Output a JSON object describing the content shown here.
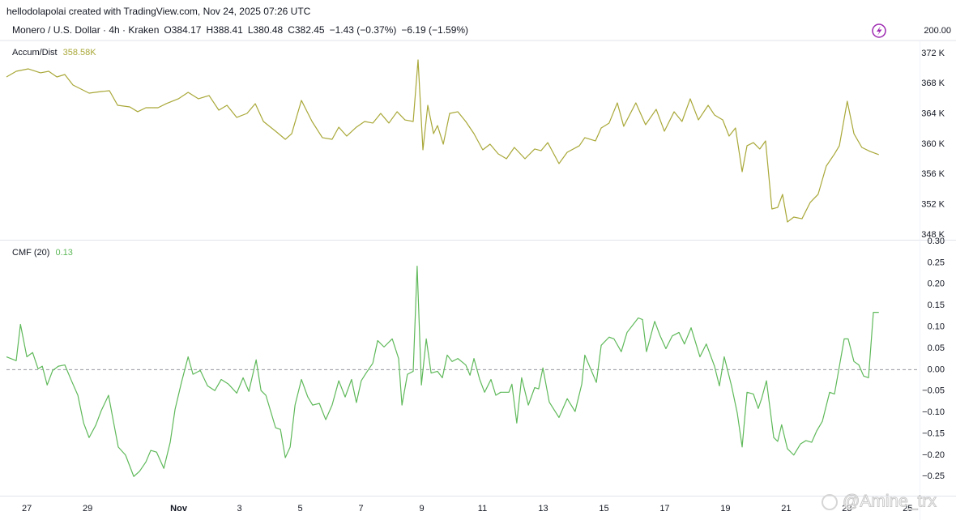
{
  "header": {
    "credit": "hellodolapolai created with TradingView.com, Nov 24, 2025 07:26 UTC",
    "symbol": "Monero / U.S. Dollar · 4h · Kraken",
    "ohlc": [
      "O384.17",
      "H388.41",
      "L380.48",
      "C382.45",
      "−1.43 (−0.37%)",
      "−6.19 (−1.59%)"
    ],
    "price_axis_label": "200.00"
  },
  "watermark": "@Amine_trx",
  "chart_data": [
    {
      "type": "line",
      "grid": false,
      "xlim": [
        -0.67,
        29.39
      ],
      "ylim": [
        347.36,
        373.71
      ],
      "yticks": [
        {
          "value": 348,
          "label": "348 K"
        },
        {
          "value": 352,
          "label": "352 K"
        },
        {
          "value": 356,
          "label": "356 K"
        },
        {
          "value": 360,
          "label": "360 K"
        },
        {
          "value": 364,
          "label": "364 K"
        },
        {
          "value": 368,
          "label": "368 K"
        },
        {
          "value": 372,
          "label": "372 K"
        }
      ],
      "x": [
        -0.67,
        -0.35,
        0.05,
        0.45,
        0.72,
        0.99,
        1.25,
        1.52,
        2.05,
        2.45,
        2.72,
        2.99,
        3.39,
        3.65,
        3.92,
        4.32,
        4.59,
        4.99,
        5.31,
        5.65,
        6.0,
        6.32,
        6.59,
        6.91,
        7.25,
        7.52,
        7.79,
        8.19,
        8.51,
        8.72,
        9.04,
        9.39,
        9.73,
        10.05,
        10.27,
        10.53,
        10.85,
        11.12,
        11.39,
        11.65,
        11.92,
        12.19,
        12.45,
        12.72,
        12.88,
        13.04,
        13.2,
        13.39,
        13.52,
        13.71,
        13.92,
        14.19,
        14.45,
        14.72,
        15.01,
        15.25,
        15.52,
        15.79,
        16.05,
        16.4,
        16.72,
        16.93,
        17.15,
        17.52,
        17.79,
        18.19,
        18.37,
        18.72,
        18.91,
        19.17,
        19.44,
        19.65,
        20.05,
        20.37,
        20.72,
        20.99,
        21.31,
        21.57,
        21.84,
        22.11,
        22.43,
        22.64,
        22.91,
        23.12,
        23.33,
        23.55,
        23.71,
        23.92,
        24.13,
        24.32,
        24.53,
        24.72,
        24.88,
        25.04,
        25.25,
        25.52,
        25.79,
        26.05,
        26.32,
        26.59,
        26.75,
        27.01,
        27.23,
        27.49,
        27.76,
        28.05
      ],
      "series": [
        {
          "name": "Accum/Dist",
          "color": "#a9a839",
          "last_label": "358.58K",
          "values": [
            368.89,
            369.64,
            369.96,
            369.43,
            369.64,
            368.89,
            369.21,
            367.82,
            366.75,
            366.96,
            367.07,
            365.14,
            364.93,
            364.29,
            364.82,
            364.82,
            365.36,
            366.0,
            366.86,
            366.0,
            366.43,
            364.5,
            365.14,
            363.54,
            364.07,
            365.36,
            363.0,
            361.71,
            360.64,
            361.39,
            365.79,
            363.0,
            360.86,
            360.64,
            362.25,
            361.07,
            362.25,
            363.0,
            362.79,
            364.07,
            362.79,
            364.29,
            363.21,
            363.0,
            371.14,
            359.25,
            365.14,
            361.39,
            362.46,
            360.0,
            364.07,
            364.29,
            363.0,
            361.39,
            359.25,
            360.0,
            358.71,
            358.07,
            359.57,
            358.07,
            359.36,
            359.14,
            360.21,
            357.43,
            358.93,
            359.79,
            360.86,
            360.43,
            362.14,
            362.79,
            365.46,
            362.36,
            365.46,
            362.57,
            364.61,
            361.71,
            364.29,
            363.0,
            366.0,
            363.21,
            365.14,
            363.86,
            363.21,
            361.07,
            362.14,
            356.36,
            359.79,
            360.21,
            359.36,
            360.43,
            351.43,
            351.64,
            353.36,
            349.71,
            350.36,
            350.14,
            352.29,
            353.36,
            357.11,
            358.71,
            359.79,
            365.68,
            361.39,
            359.57,
            359.04,
            358.61
          ]
        }
      ]
    },
    {
      "type": "line",
      "grid": false,
      "hline": 0,
      "xlim": [
        -0.67,
        29.39
      ],
      "ylim": [
        -0.295,
        0.302
      ],
      "xticks": [
        {
          "value": 0,
          "label": "27"
        },
        {
          "value": 2,
          "label": "29"
        },
        {
          "value": 5,
          "label": "Nov"
        },
        {
          "value": 7,
          "label": "3"
        },
        {
          "value": 9,
          "label": "5"
        },
        {
          "value": 11,
          "label": "7"
        },
        {
          "value": 13,
          "label": "9"
        },
        {
          "value": 15,
          "label": "11"
        },
        {
          "value": 17,
          "label": "13"
        },
        {
          "value": 19,
          "label": "15"
        },
        {
          "value": 21,
          "label": "17"
        },
        {
          "value": 23,
          "label": "19"
        },
        {
          "value": 25,
          "label": "21"
        },
        {
          "value": 27,
          "label": "23"
        },
        {
          "value": 29,
          "label": "25"
        }
      ],
      "yticks": [
        {
          "value": 0.3,
          "label": "0.30"
        },
        0.25,
        {
          "value": 0.2,
          "label": "0.20"
        },
        0.15,
        {
          "value": 0.1,
          "label": "0.10"
        },
        0.05,
        {
          "value": 0,
          "label": "0.00"
        },
        {
          "value": -0.05,
          "label": "−0.05"
        },
        {
          "value": -0.1,
          "label": "−0.10"
        },
        {
          "value": -0.15,
          "label": "−0.15"
        },
        {
          "value": -0.2,
          "label": "−0.20"
        },
        {
          "value": -0.25,
          "label": "−0.25"
        }
      ],
      "x": [
        -0.67,
        -0.35,
        -0.21,
        0,
        0.19,
        0.37,
        0.51,
        0.67,
        0.85,
        1.04,
        1.25,
        1.47,
        1.68,
        1.87,
        2.05,
        2.27,
        2.45,
        2.69,
        2.85,
        3.01,
        3.25,
        3.52,
        3.71,
        3.92,
        4.08,
        4.27,
        4.51,
        4.72,
        4.88,
        5.09,
        5.31,
        5.47,
        5.71,
        5.95,
        6.19,
        6.4,
        6.64,
        6.91,
        7.12,
        7.31,
        7.55,
        7.71,
        7.87,
        8.19,
        8.35,
        8.51,
        8.67,
        8.83,
        9.04,
        9.25,
        9.41,
        9.63,
        9.84,
        10.05,
        10.27,
        10.48,
        10.69,
        10.85,
        11.01,
        11.17,
        11.39,
        11.55,
        11.76,
        12.03,
        12.24,
        12.35,
        12.53,
        12.72,
        12.85,
        12.99,
        13.15,
        13.31,
        13.52,
        13.68,
        13.84,
        14.0,
        14.19,
        14.45,
        14.59,
        14.72,
        14.91,
        15.07,
        15.28,
        15.44,
        15.6,
        15.87,
        15.97,
        16.13,
        16.29,
        16.51,
        16.72,
        16.85,
        16.99,
        17.2,
        17.52,
        17.79,
        18.05,
        18.27,
        18.37,
        18.75,
        18.91,
        19.17,
        19.33,
        19.57,
        19.76,
        20.13,
        20.27,
        20.4,
        20.67,
        20.85,
        21.04,
        21.25,
        21.47,
        21.65,
        21.87,
        22.16,
        22.37,
        22.64,
        22.8,
        22.96,
        23.2,
        23.39,
        23.55,
        23.71,
        23.92,
        24.08,
        24.19,
        24.35,
        24.59,
        24.72,
        24.85,
        25.04,
        25.25,
        25.47,
        25.65,
        25.84,
        26.0,
        26.19,
        26.43,
        26.59,
        26.91,
        27.04,
        27.23,
        27.39,
        27.55,
        27.71,
        27.87,
        28.05
      ],
      "series": [
        {
          "name": "CMF (20)",
          "color": "#5fb95a",
          "last_label": "0.13",
          "values": [
            0.03,
            0.021,
            0.106,
            0.03,
            0.04,
            0.002,
            0.008,
            -0.036,
            -0.002,
            0.008,
            0.011,
            -0.026,
            -0.06,
            -0.125,
            -0.159,
            -0.13,
            -0.096,
            -0.06,
            -0.121,
            -0.181,
            -0.2,
            -0.25,
            -0.238,
            -0.216,
            -0.189,
            -0.193,
            -0.231,
            -0.17,
            -0.093,
            -0.03,
            0.03,
            -0.011,
            -0.002,
            -0.038,
            -0.049,
            -0.023,
            -0.034,
            -0.055,
            -0.019,
            -0.051,
            0.023,
            -0.049,
            -0.06,
            -0.136,
            -0.14,
            -0.206,
            -0.181,
            -0.083,
            -0.023,
            -0.064,
            -0.083,
            -0.079,
            -0.117,
            -0.083,
            -0.026,
            -0.064,
            -0.023,
            -0.077,
            -0.026,
            -0.008,
            0.015,
            0.068,
            0.053,
            0.072,
            0.026,
            -0.083,
            -0.011,
            -0.004,
            0.242,
            -0.036,
            0.072,
            -0.008,
            -0.004,
            -0.019,
            0.034,
            0.019,
            0.026,
            0.011,
            -0.013,
            0.026,
            -0.023,
            -0.053,
            -0.023,
            -0.06,
            -0.053,
            -0.053,
            -0.034,
            -0.125,
            -0.019,
            -0.083,
            -0.042,
            -0.045,
            0.004,
            -0.076,
            -0.112,
            -0.068,
            -0.098,
            -0.034,
            0.034,
            -0.03,
            0.057,
            0.076,
            0.072,
            0.042,
            0.087,
            0.121,
            0.117,
            0.042,
            0.113,
            0.079,
            0.049,
            0.079,
            0.087,
            0.06,
            0.098,
            0.03,
            0.06,
            0.008,
            -0.038,
            0.03,
            -0.038,
            -0.102,
            -0.181,
            -0.053,
            -0.057,
            -0.091,
            -0.068,
            -0.026,
            -0.159,
            -0.168,
            -0.129,
            -0.185,
            -0.2,
            -0.174,
            -0.166,
            -0.17,
            -0.144,
            -0.121,
            -0.053,
            -0.057,
            0.072,
            0.072,
            0.019,
            0.011,
            -0.015,
            -0.019,
            0.134,
            0.134
          ]
        }
      ]
    }
  ]
}
